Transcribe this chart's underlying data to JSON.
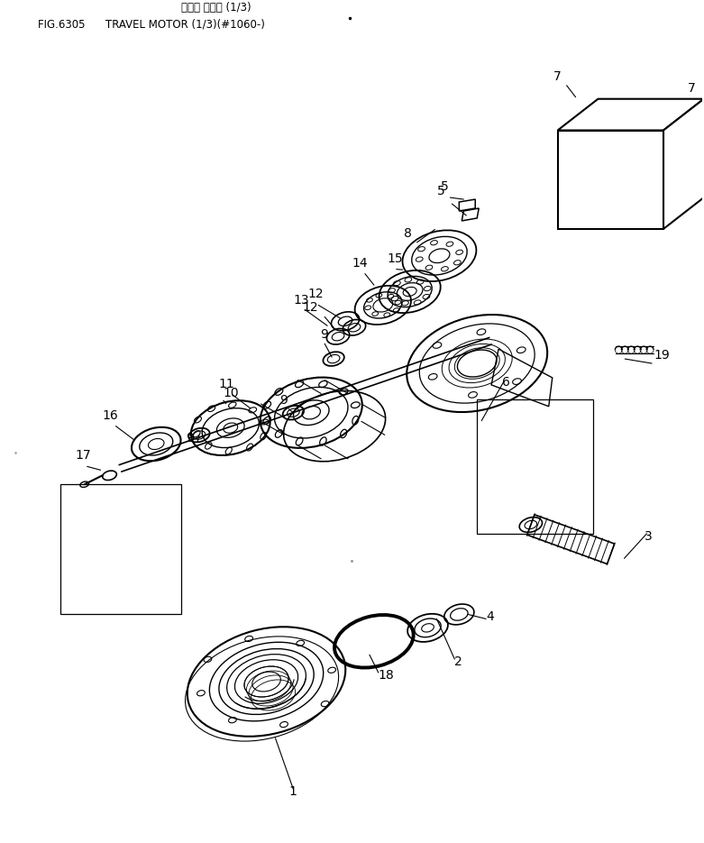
{
  "title_line1": "ソコウ モータ (1/3)",
  "title_line2": "FIG.6305      TRAVEL MOTOR (1/3)(#1060-)",
  "bg_color": "#ffffff",
  "line_color": "#000000",
  "figsize": [
    7.81,
    9.35
  ],
  "dpi": 100
}
